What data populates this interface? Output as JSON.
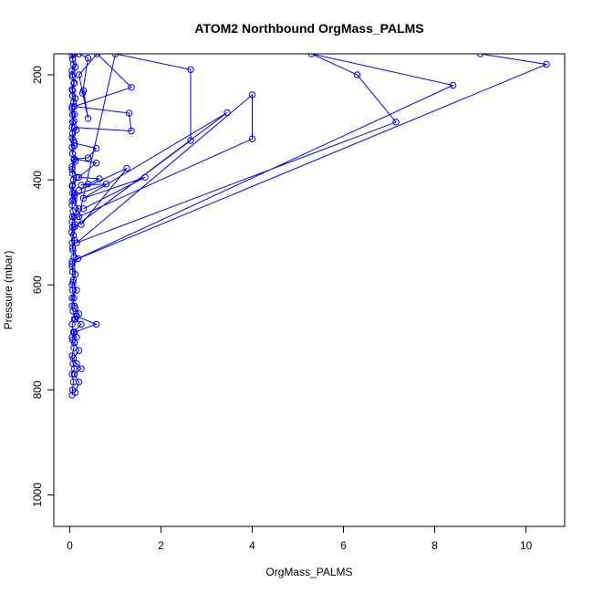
{
  "chart_data": {
    "type": "line",
    "title": "ATOM2 Northbound OrgMass_PALMS",
    "xlabel": "OrgMass_PALMS",
    "ylabel": "Pressure (mbar)",
    "xlim": [
      -0.35,
      10.85
    ],
    "ylim": [
      1060,
      160
    ],
    "y_reversed": true,
    "x_ticks": [
      0,
      2,
      4,
      6,
      8,
      10
    ],
    "y_ticks": [
      200,
      400,
      600,
      800,
      1000
    ],
    "grid": false,
    "legend": "none",
    "marker": "open-circle",
    "color": "#0000ff",
    "series": [
      {
        "points": [
          [
            0.05,
            810
          ],
          [
            0.06,
            800
          ],
          [
            0.08,
            785
          ],
          [
            0.05,
            770
          ],
          [
            0.1,
            760
          ],
          [
            0.07,
            750
          ],
          [
            0.05,
            735
          ],
          [
            0.09,
            720
          ],
          [
            0.06,
            705
          ],
          [
            0.08,
            690
          ],
          [
            0.05,
            675
          ],
          [
            0.12,
            665
          ],
          [
            0.07,
            650
          ],
          [
            0.05,
            640
          ],
          [
            0.09,
            625
          ],
          [
            0.06,
            610
          ],
          [
            0.05,
            600
          ],
          [
            0.08,
            590
          ],
          [
            0.06,
            575
          ],
          [
            0.05,
            560
          ],
          [
            0.09,
            548
          ],
          [
            0.07,
            535
          ],
          [
            0.05,
            520
          ],
          [
            0.08,
            505
          ],
          [
            0.06,
            490
          ],
          [
            0.05,
            480
          ],
          [
            0.1,
            470
          ],
          [
            0.07,
            460
          ],
          [
            0.05,
            448
          ],
          [
            0.09,
            438
          ],
          [
            0.06,
            425
          ],
          [
            0.05,
            412
          ],
          [
            0.08,
            400
          ],
          [
            0.06,
            388
          ],
          [
            0.05,
            375
          ],
          [
            0.09,
            362
          ],
          [
            0.06,
            350
          ],
          [
            0.05,
            338
          ],
          [
            0.08,
            325
          ],
          [
            0.06,
            312
          ],
          [
            0.05,
            300
          ],
          [
            0.09,
            288
          ],
          [
            0.06,
            276
          ],
          [
            0.05,
            264
          ],
          [
            0.08,
            252
          ],
          [
            0.06,
            240
          ],
          [
            0.05,
            228
          ],
          [
            0.09,
            216
          ],
          [
            0.06,
            204
          ],
          [
            0.05,
            192
          ],
          [
            0.08,
            180
          ],
          [
            0.06,
            170
          ],
          [
            0.05,
            162
          ],
          [
            0.07,
            158
          ]
        ]
      },
      {
        "points": [
          [
            0.1,
            640
          ],
          [
            0.05,
            625
          ],
          [
            0.15,
            610
          ],
          [
            0.07,
            595
          ],
          [
            0.12,
            580
          ],
          [
            0.05,
            565
          ],
          [
            0.18,
            550
          ],
          [
            0.06,
            530
          ],
          [
            0.1,
            515
          ],
          [
            0.04,
            500
          ],
          [
            0.12,
            485
          ],
          [
            0.06,
            470
          ],
          [
            0.2,
            455
          ],
          [
            0.05,
            440
          ],
          [
            0.1,
            425
          ],
          [
            0.06,
            410
          ],
          [
            0.15,
            395
          ],
          [
            0.05,
            380
          ],
          [
            0.12,
            365
          ],
          [
            0.06,
            350
          ],
          [
            0.1,
            335
          ],
          [
            0.05,
            320
          ],
          [
            0.14,
            305
          ],
          [
            0.06,
            290
          ],
          [
            0.1,
            275
          ],
          [
            0.05,
            260
          ],
          [
            0.12,
            245
          ],
          [
            0.06,
            230
          ],
          [
            0.1,
            215
          ],
          [
            0.05,
            200
          ],
          [
            0.12,
            185
          ],
          [
            0.06,
            170
          ],
          [
            0.1,
            160
          ]
        ]
      },
      {
        "points": [
          [
            0.12,
            805
          ],
          [
            0.2,
            785
          ],
          [
            0.1,
            770
          ],
          [
            0.25,
            760
          ],
          [
            0.15,
            750
          ],
          [
            0.08,
            740
          ],
          [
            0.2,
            725
          ],
          [
            0.1,
            710
          ],
          [
            0.15,
            700
          ],
          [
            0.08,
            690
          ],
          [
            0.25,
            675
          ],
          [
            0.1,
            665
          ],
          [
            0.2,
            655
          ],
          [
            0.12,
            645
          ]
        ]
      },
      {
        "points": [
          [
            0.15,
            660
          ],
          [
            0.58,
            675
          ],
          [
            0.1,
            690
          ],
          [
            0.05,
            700
          ]
        ]
      },
      {
        "points": [
          [
            0.3,
            455
          ],
          [
            1.65,
            395
          ],
          [
            0.3,
            435
          ],
          [
            3.45,
            272
          ],
          [
            0.1,
            490
          ],
          [
            2.65,
            325
          ],
          [
            2.65,
            190
          ],
          [
            1.0,
            160
          ],
          [
            0.2,
            470
          ],
          [
            4.0,
            322
          ],
          [
            4.0,
            238
          ],
          [
            0.15,
            520
          ],
          [
            7.15,
            290
          ],
          [
            6.3,
            200
          ],
          [
            5.3,
            160
          ],
          [
            8.4,
            220
          ],
          [
            0.05,
            555
          ],
          [
            10.45,
            180
          ],
          [
            9.0,
            160
          ]
        ]
      },
      {
        "points": [
          [
            0.2,
            420
          ],
          [
            1.25,
            378
          ],
          [
            0.25,
            485
          ],
          [
            0.1,
            430
          ],
          [
            0.8,
            408
          ],
          [
            0.25,
            410
          ],
          [
            0.4,
            408
          ],
          [
            0.65,
            398
          ],
          [
            0.2,
            395
          ],
          [
            0.58,
            368
          ],
          [
            0.1,
            360
          ],
          [
            0.4,
            358
          ],
          [
            0.58,
            340
          ],
          [
            0.1,
            330
          ]
        ]
      },
      {
        "points": [
          [
            0.1,
            300
          ],
          [
            1.35,
            307
          ],
          [
            1.3,
            273
          ],
          [
            0.1,
            260
          ],
          [
            1.35,
            224
          ],
          [
            0.6,
            160
          ],
          [
            0.2,
            200
          ],
          [
            0.4,
            283
          ],
          [
            0.3,
            230
          ],
          [
            0.28,
            235
          ],
          [
            0.4,
            168
          ],
          [
            0.2,
            160
          ]
        ]
      }
    ]
  }
}
